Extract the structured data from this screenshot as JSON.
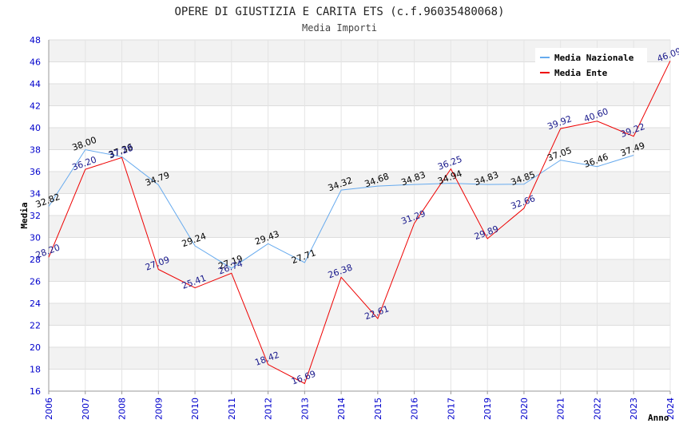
{
  "chart_data": {
    "type": "line",
    "title": "OPERE DI GIUSTIZIA E CARITA ETS (c.f.96035480068)",
    "subtitle": "Media Importi",
    "xlabel": "Anno",
    "ylabel": "Media",
    "ylim": [
      16,
      48
    ],
    "ytick_step": 2,
    "grid": true,
    "legend_position": "top-right",
    "categories": [
      "2006",
      "2007",
      "2008",
      "2009",
      "2010",
      "2011",
      "2012",
      "2013",
      "2014",
      "2015",
      "2016",
      "2017",
      "2019",
      "2020",
      "2021",
      "2022",
      "2023",
      "2024"
    ],
    "series": [
      {
        "name": "Media Nazionale",
        "color": "#66aaee",
        "label_color": "#000000",
        "values": [
          32.82,
          38.0,
          37.36,
          34.79,
          29.24,
          27.19,
          29.43,
          27.71,
          34.32,
          34.68,
          34.83,
          34.94,
          34.83,
          34.85,
          37.05,
          36.46,
          37.49,
          null
        ],
        "labels": [
          "32.82",
          "38.00",
          "37.36",
          "34.79",
          "29.24",
          "27.19",
          "29.43",
          "27.71",
          "34.32",
          "34.68",
          "34.83",
          "34.94",
          "34.83",
          "34.85",
          "37.05",
          "36.46",
          "37.49",
          ""
        ]
      },
      {
        "name": "Media Ente",
        "color": "#ee0000",
        "label_color": "#1a1a8c",
        "values": [
          28.2,
          36.2,
          37.28,
          27.09,
          25.41,
          26.74,
          18.42,
          16.69,
          26.38,
          22.61,
          31.29,
          36.25,
          29.89,
          32.66,
          39.92,
          40.6,
          39.22,
          46.09
        ],
        "labels": [
          "28.20",
          "36.20",
          "37.28",
          "27.09",
          "25.41",
          "26.74",
          "18.42",
          "16.69",
          "26.38",
          "22.61",
          "31.29",
          "36.25",
          "29.89",
          "32.66",
          "39.92",
          "40.60",
          "39.22",
          "46.09"
        ]
      }
    ]
  }
}
